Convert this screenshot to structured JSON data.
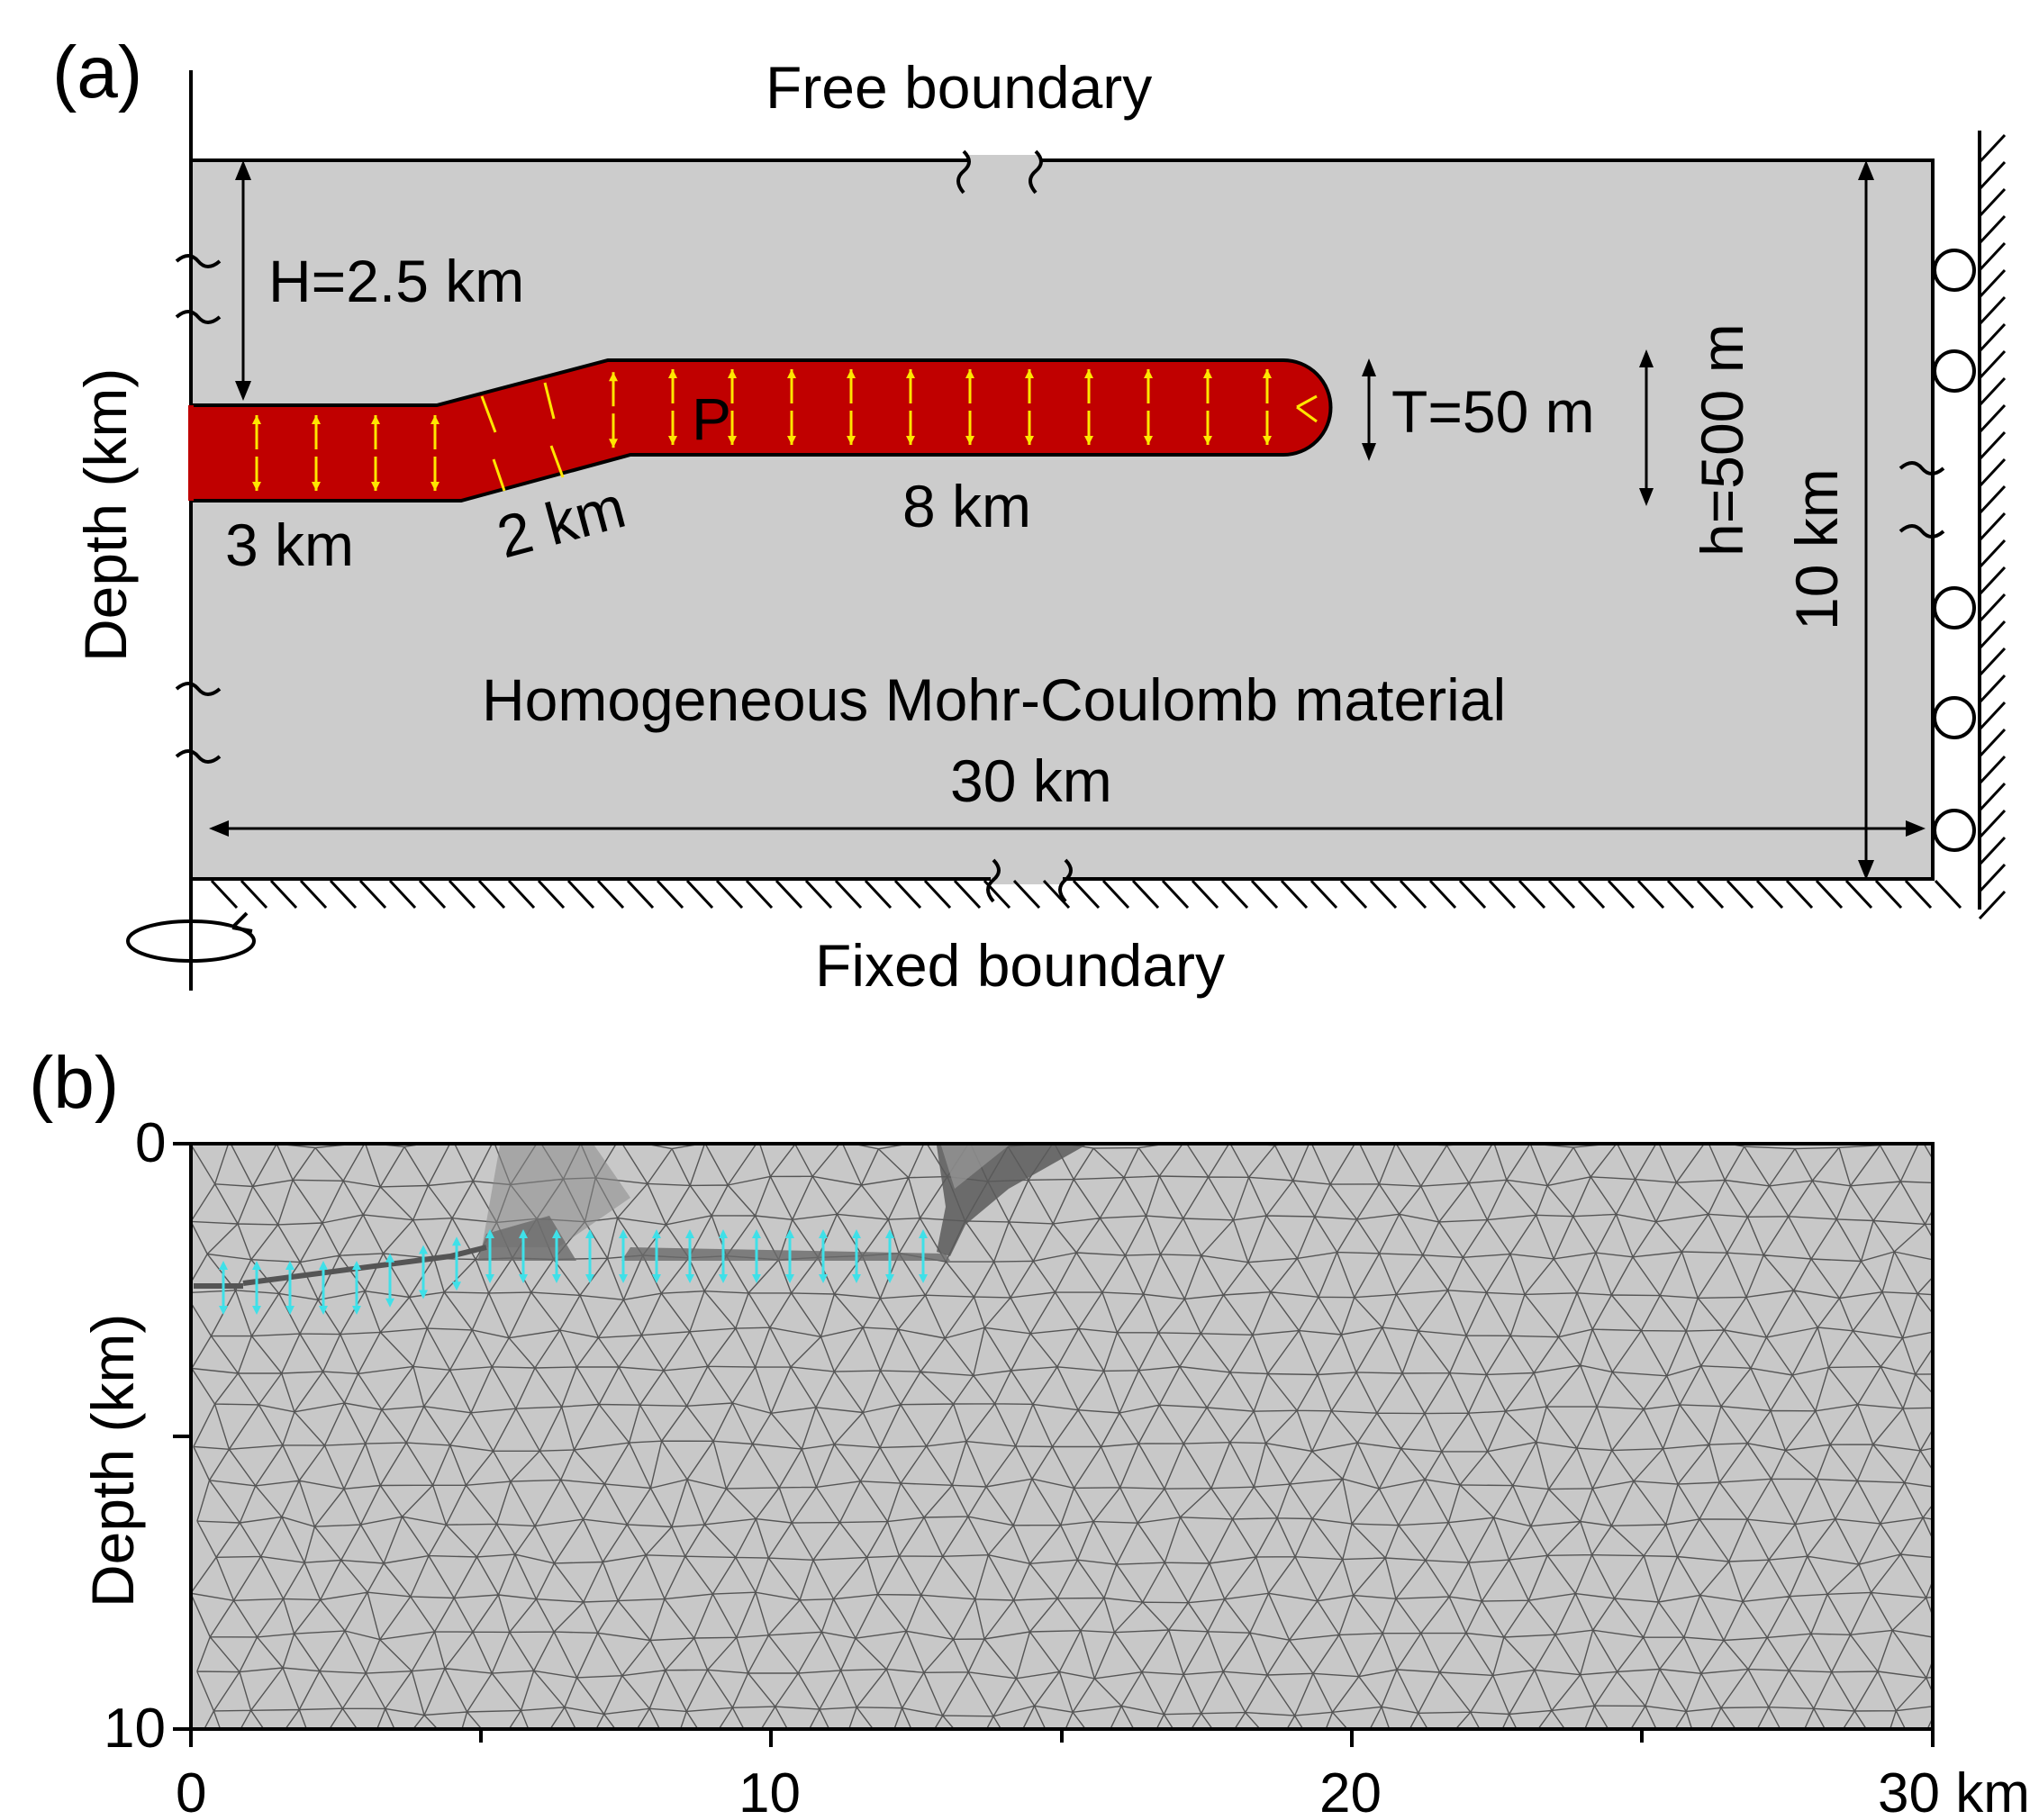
{
  "panel_a": {
    "label": "(a)",
    "top_boundary": "Free boundary",
    "bottom_boundary": "Fixed boundary",
    "y_axis_label": "Depth (km)",
    "dim_H": "H=2.5 km",
    "seg_1": "3 km",
    "seg_2": "2 km",
    "seg_3": "8 km",
    "dim_T": "T=50 m",
    "dim_h": "h=500 m",
    "dim_depth": "10 km",
    "material": "Homogeneous Mohr-Coulomb material",
    "dim_width": "30 km",
    "pressure": "P"
  },
  "panel_b": {
    "label": "(b)",
    "y_axis_label": "Depth (km)",
    "y_ticks": [
      "0",
      "10"
    ],
    "x_ticks": [
      "0",
      "10",
      "20",
      "30 km"
    ]
  },
  "colors": {
    "sill": "#c00000",
    "host": "#cccccc",
    "arrow": "#ffe600",
    "mesh_arrow": "#3fe0e8"
  }
}
